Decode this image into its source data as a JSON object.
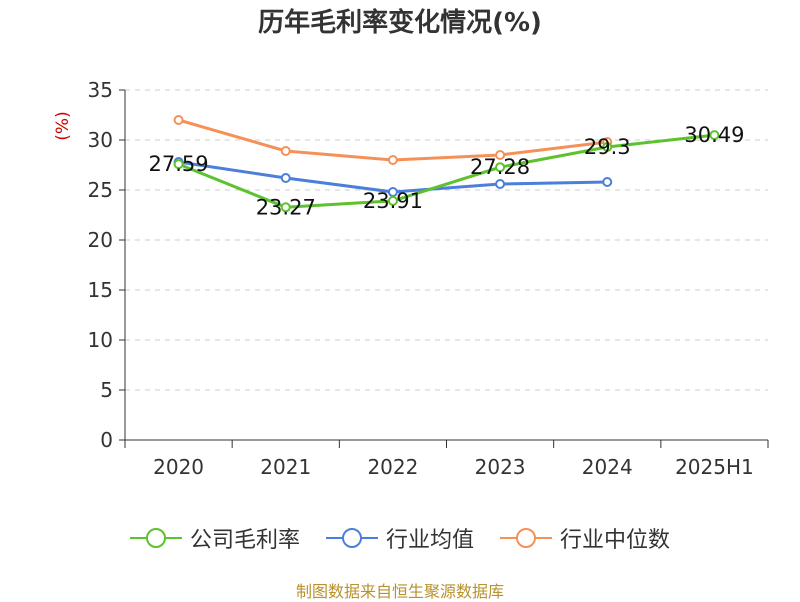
{
  "title": "历年毛利率变化情况(%)",
  "source_note": "制图数据来自恒生聚源数据库",
  "colors": {
    "axis": "#333333",
    "grid": "#cccccc",
    "ylabel": "#cc0000",
    "source": "#b8922d"
  },
  "chart_data": {
    "type": "line",
    "title": "历年毛利率变化情况(%)",
    "ylabel": "(%)",
    "xlabel": "",
    "categories": [
      "2020",
      "2021",
      "2022",
      "2023",
      "2024",
      "2025H1"
    ],
    "ylim": [
      0,
      35
    ],
    "yticks": [
      0,
      5,
      10,
      15,
      20,
      25,
      30,
      35
    ],
    "grid": true,
    "legend_position": "bottom",
    "series": [
      {
        "name": "公司毛利率",
        "color": "#5cc22e",
        "values": [
          27.59,
          23.27,
          23.91,
          27.28,
          29.3,
          30.49
        ],
        "labels": [
          "27.59",
          "23.27",
          "23.91",
          "27.28",
          "29.3",
          "30.49"
        ]
      },
      {
        "name": "行业均值",
        "color": "#4b7fdb",
        "values": [
          27.8,
          26.2,
          24.8,
          25.6,
          25.8,
          null
        ]
      },
      {
        "name": "行业中位数",
        "color": "#f59156",
        "values": [
          32.0,
          28.9,
          28.0,
          28.5,
          29.8,
          null
        ]
      }
    ]
  }
}
